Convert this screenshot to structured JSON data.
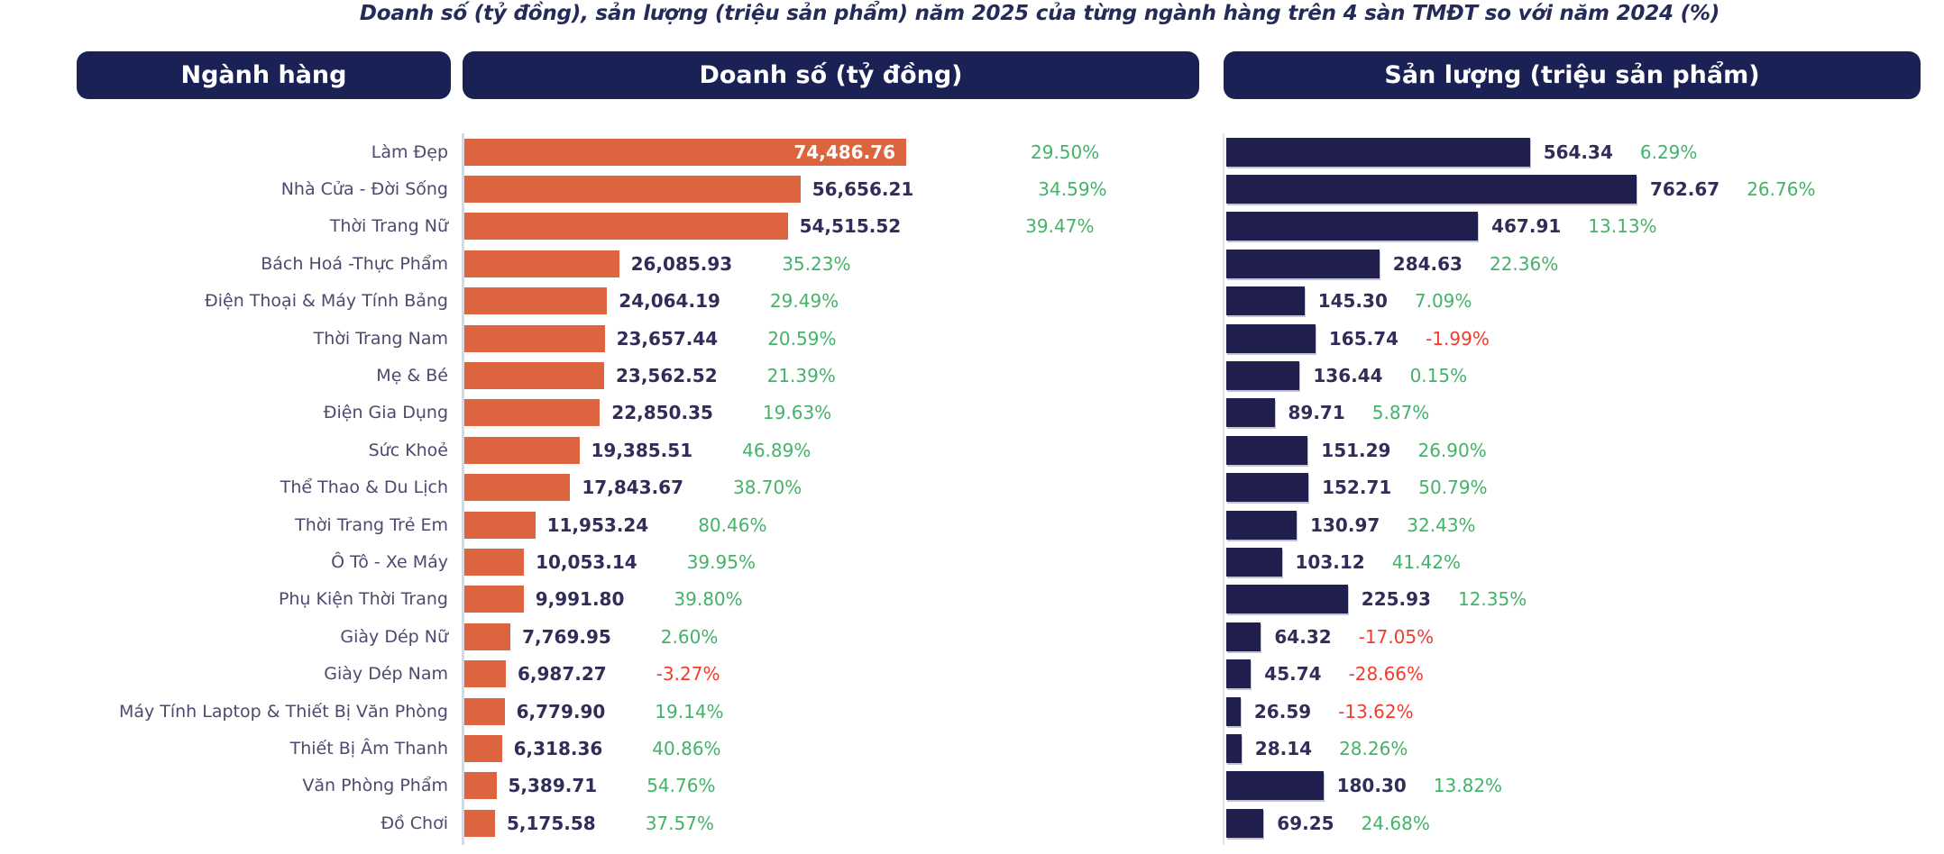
{
  "title": "Doanh số (tỷ đồng), sản lượng (triệu sản phẩm) năm 2025 của từng ngành hàng trên 4 sàn TMĐT so với năm 2024 (%)",
  "headers": {
    "category": "Ngành hàng",
    "revenue": "Doanh số (tỷ đồng)",
    "volume": "Sản lượng (triệu sản phẩm)"
  },
  "colors": {
    "header_navy": "#1a2155",
    "revenue_bar_orange": "#dc6540",
    "volume_bar_navy": "#211f4d",
    "positive_green": "#45b269",
    "negative_red": "#f23b2c",
    "value_text": "#302e58",
    "category_text": "#4c4a6e",
    "axis_gray": "#d8d8e0"
  },
  "chart_data": {
    "type": "bar",
    "orientation": "horizontal",
    "grid": false,
    "legend": false,
    "title": "Doanh số (tỷ đồng), sản lượng (triệu sản phẩm) năm 2025 của từng ngành hàng trên 4 sàn TMĐT so với năm 2024 (%)",
    "comparison_note": "so với năm 2024 (%)",
    "categories": [
      "Làm Đẹp",
      "Nhà Cửa - Đời Sống",
      "Thời Trang Nữ",
      "Bách Hoá -Thực Phẩm",
      "Điện Thoại & Máy Tính Bảng",
      "Thời Trang Nam",
      "Mẹ & Bé",
      "Điện Gia Dụng",
      "Sức Khoẻ",
      "Thể Thao & Du Lịch",
      "Thời Trang Trẻ Em",
      "Ô Tô - Xe Máy",
      "Phụ Kiện Thời Trang",
      "Giày Dép Nữ",
      "Giày Dép Nam",
      "Máy Tính Laptop & Thiết Bị Văn Phòng",
      "Thiết Bị Âm Thanh",
      "Văn Phòng Phẩm",
      "Đồ Chơi"
    ],
    "series": [
      {
        "name": "Doanh số (tỷ đồng)",
        "unit": "tỷ đồng",
        "color": "#dc6540",
        "xlim": [
          0,
          74486.76
        ],
        "values": [
          74486.76,
          56656.21,
          54515.52,
          26085.93,
          24064.19,
          23657.44,
          23562.52,
          22850.35,
          19385.51,
          17843.67,
          11953.24,
          10053.14,
          9991.8,
          7769.95,
          6987.27,
          6779.9,
          6318.36,
          5389.71,
          5175.58
        ],
        "labels": [
          "74,486.76",
          "56,656.21",
          "54,515.52",
          "26,085.93",
          "24,064.19",
          "23,657.44",
          "23,562.52",
          "22,850.35",
          "19,385.51",
          "17,843.67",
          "11,953.24",
          "10,053.14",
          "9,991.80",
          "7,769.95",
          "6,987.27",
          "6,779.90",
          "6,318.36",
          "5,389.71",
          "5,175.58"
        ],
        "change_pct": [
          "29.50%",
          "34.59%",
          "39.47%",
          "35.23%",
          "29.49%",
          "20.59%",
          "21.39%",
          "19.63%",
          "46.89%",
          "38.70%",
          "80.46%",
          "39.95%",
          "39.80%",
          "2.60%",
          "-3.27%",
          "19.14%",
          "40.86%",
          "54.76%",
          "37.57%"
        ]
      },
      {
        "name": "Sản lượng (triệu sản phẩm)",
        "unit": "triệu sản phẩm",
        "color": "#211f4d",
        "xlim": [
          0,
          762.67
        ],
        "values": [
          564.34,
          762.67,
          467.91,
          284.63,
          145.3,
          165.74,
          136.44,
          89.71,
          151.29,
          152.71,
          130.97,
          103.12,
          225.93,
          64.32,
          45.74,
          26.59,
          28.14,
          180.3,
          69.25
        ],
        "labels": [
          "564.34",
          "762.67",
          "467.91",
          "284.63",
          "145.30",
          "165.74",
          "136.44",
          "89.71",
          "151.29",
          "152.71",
          "130.97",
          "103.12",
          "225.93",
          "64.32",
          "45.74",
          "26.59",
          "28.14",
          "180.30",
          "69.25"
        ],
        "change_pct": [
          "6.29%",
          "26.76%",
          "13.13%",
          "22.36%",
          "7.09%",
          "-1.99%",
          "0.15%",
          "5.87%",
          "26.90%",
          "50.79%",
          "32.43%",
          "41.42%",
          "12.35%",
          "-17.05%",
          "-28.66%",
          "-13.62%",
          "28.26%",
          "13.82%",
          "24.68%"
        ]
      }
    ]
  }
}
